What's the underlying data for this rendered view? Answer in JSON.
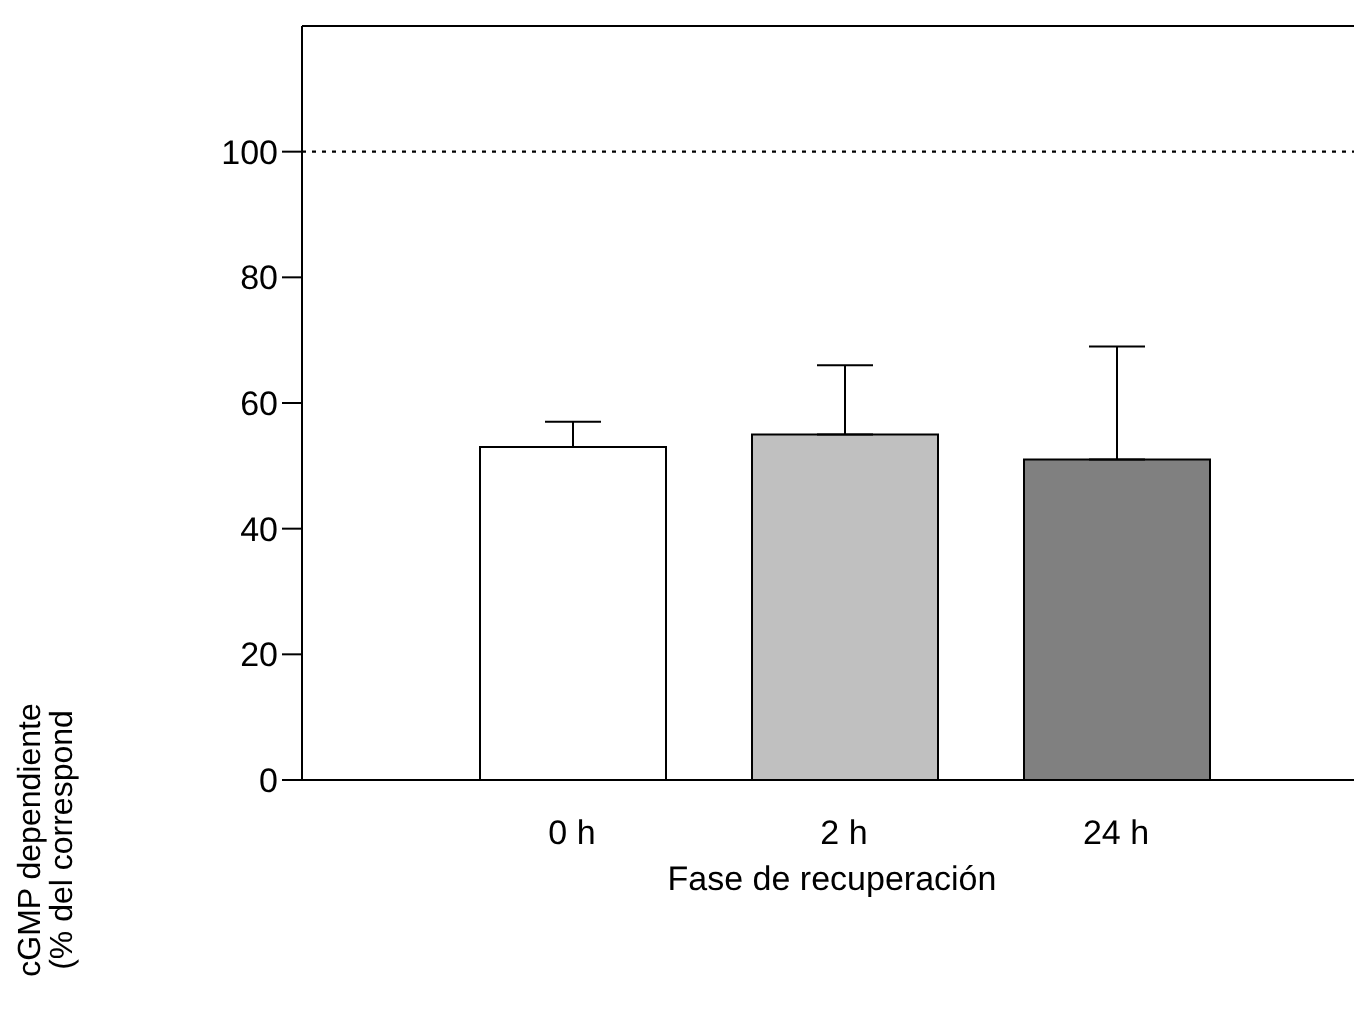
{
  "chart_data": {
    "type": "bar",
    "xlabel": "Fase de recuperación",
    "ylabel": "cGMP dependiente\n(% del correspond",
    "categories": [
      "0 h",
      "2 h",
      "24 h"
    ],
    "values": [
      53,
      55,
      51
    ],
    "colors": [
      "#ffffff",
      "#c0c0c0",
      "#808080"
    ],
    "errors": [
      [
        53,
        57
      ],
      [
        55,
        66
      ],
      [
        51,
        69
      ]
    ],
    "ylim": [
      0,
      120
    ],
    "yticks": [
      0,
      20,
      40,
      60,
      80,
      100
    ],
    "ref_lines": [
      {
        "axis": "y",
        "value": 100,
        "line_style": "dotted"
      }
    ]
  }
}
